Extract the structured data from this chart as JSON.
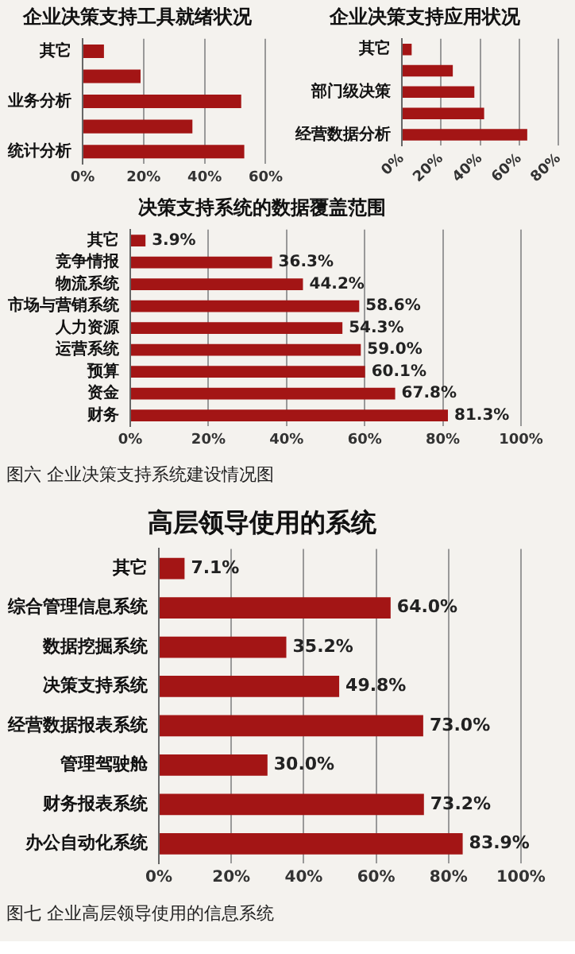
{
  "chart_data": [
    {
      "type": "bar",
      "orientation": "horizontal",
      "title": "企业决策支持工具就绪状况",
      "categories": [
        "其它",
        null,
        "业务分析",
        null,
        "统计分析"
      ],
      "values": [
        7,
        19,
        52,
        36,
        53
      ],
      "color": "#a31515",
      "xlim": [
        0,
        60
      ],
      "xticks": [
        {
          "value": 0,
          "label": "0%"
        },
        {
          "value": 20,
          "label": "20%"
        },
        {
          "value": 40,
          "label": "40%"
        },
        {
          "value": 60,
          "label": "60%"
        }
      ],
      "grid": "x",
      "legend": false
    },
    {
      "type": "bar",
      "orientation": "horizontal",
      "title": "企业决策支持应用状况",
      "categories": [
        "其它",
        null,
        "部门级决策",
        null,
        "经营数据分析"
      ],
      "values": [
        5,
        26,
        37,
        42,
        64
      ],
      "color": "#a31515",
      "xlim": [
        0,
        80
      ],
      "xticks": [
        {
          "value": 0,
          "label": "0%"
        },
        {
          "value": 20,
          "label": "20%"
        },
        {
          "value": 40,
          "label": "40%"
        },
        {
          "value": 60,
          "label": "60%"
        },
        {
          "value": 80,
          "label": "80%"
        }
      ],
      "grid": "x",
      "legend": false
    },
    {
      "type": "bar",
      "orientation": "horizontal",
      "title": "决策支持系统的数据覆盖范围",
      "categories": [
        "其它",
        "竞争情报",
        "物流系统",
        "市场与营销系统",
        "人力资源",
        "运营系统",
        "预算",
        "资金",
        "财务"
      ],
      "values": [
        3.9,
        36.3,
        44.2,
        58.6,
        54.3,
        59.0,
        60.1,
        67.8,
        81.3
      ],
      "value_labels": [
        "3.9%",
        "36.3%",
        "44.2%",
        "58.6%",
        "54.3%",
        "59.0%",
        "60.1%",
        "67.8%",
        "81.3%"
      ],
      "color": "#a31515",
      "xlim": [
        0,
        100
      ],
      "xticks": [
        {
          "value": 0,
          "label": "0%"
        },
        {
          "value": 20,
          "label": "20%"
        },
        {
          "value": 40,
          "label": "40%"
        },
        {
          "value": 60,
          "label": "60%"
        },
        {
          "value": 80,
          "label": "80%"
        },
        {
          "value": 100,
          "label": "100%"
        }
      ],
      "grid": "x",
      "legend": false,
      "annotations": [
        "图六 企业决策支持系统建设情况图"
      ]
    },
    {
      "type": "bar",
      "orientation": "horizontal",
      "title": "高层领导使用的系统",
      "categories": [
        "其它",
        "综合管理信息系统",
        "数据挖掘系统",
        "决策支持系统",
        "经营数据报表系统",
        "管理驾驶舱",
        "财务报表系统",
        "办公自动化系统"
      ],
      "values": [
        7.1,
        64.0,
        35.2,
        49.8,
        73.0,
        30.0,
        73.2,
        83.9
      ],
      "value_labels": [
        "7.1%",
        "64.0%",
        "35.2%",
        "49.8%",
        "73.0%",
        "30.0%",
        "73.2%",
        "83.9%"
      ],
      "color": "#a31515",
      "xlim": [
        0,
        100
      ],
      "xticks": [
        {
          "value": 0,
          "label": "0%"
        },
        {
          "value": 20,
          "label": "20%"
        },
        {
          "value": 40,
          "label": "40%"
        },
        {
          "value": 60,
          "label": "60%"
        },
        {
          "value": 80,
          "label": "80%"
        },
        {
          "value": 100,
          "label": "100%"
        }
      ],
      "grid": "x",
      "legend": false,
      "annotations": [
        "图七 企业高层领导使用的信息系统"
      ]
    }
  ]
}
